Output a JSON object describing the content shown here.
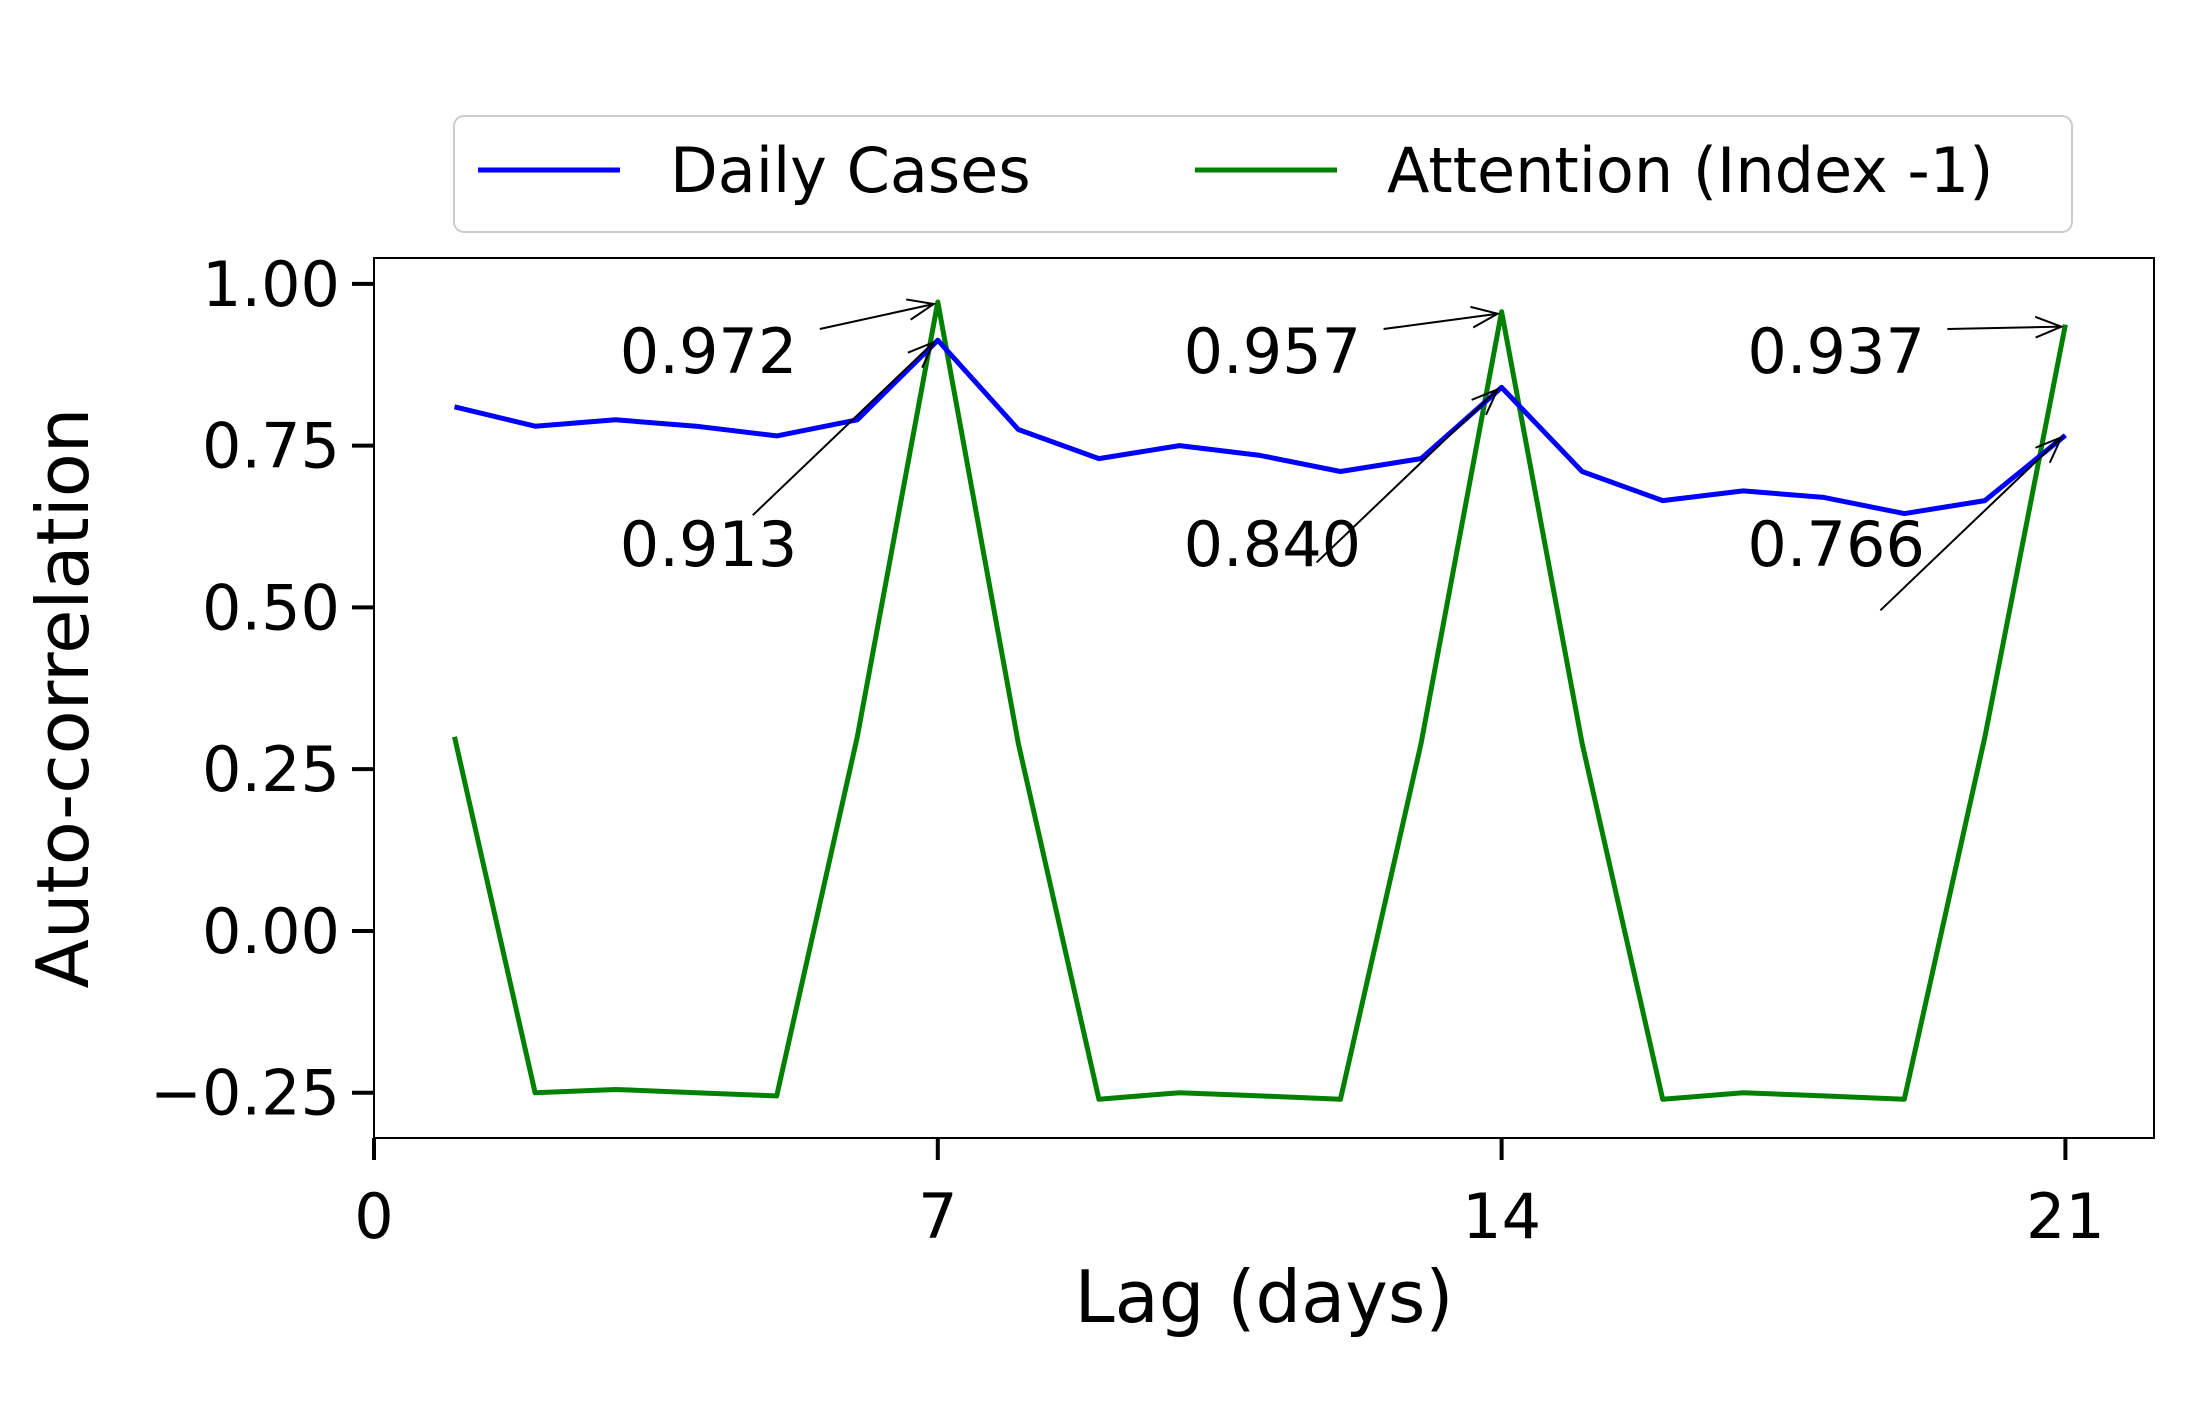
{
  "chart_data": {
    "type": "line",
    "xlabel": "Lag (days)",
    "ylabel": "Auto-correlation",
    "xlim": [
      0,
      22.1
    ],
    "ylim": [
      -0.32,
      1.04
    ],
    "xticks": [
      0,
      7,
      14,
      21
    ],
    "yticks": [
      -0.25,
      0.0,
      0.25,
      0.5,
      0.75,
      1.0
    ],
    "ytick_labels": [
      "−0.25",
      "0.00",
      "0.25",
      "0.50",
      "0.75",
      "1.00"
    ],
    "xtick_labels": [
      "0",
      "7",
      "14",
      "21"
    ],
    "grid": false,
    "legend_position": "top (outside)",
    "x": [
      1,
      2,
      3,
      4,
      5,
      6,
      7,
      8,
      9,
      10,
      11,
      12,
      13,
      14,
      15,
      16,
      17,
      18,
      19,
      20,
      21
    ],
    "series": [
      {
        "name": "Daily Cases",
        "color": "#0000ff",
        "values": [
          0.81,
          0.78,
          0.79,
          0.78,
          0.765,
          0.79,
          0.913,
          0.775,
          0.73,
          0.75,
          0.735,
          0.71,
          0.73,
          0.84,
          0.71,
          0.665,
          0.68,
          0.67,
          0.645,
          0.665,
          0.766
        ]
      },
      {
        "name": "Attention (Index -1)",
        "color": "#008000",
        "values": [
          0.3,
          -0.25,
          -0.245,
          -0.25,
          -0.255,
          0.3,
          0.972,
          0.29,
          -0.26,
          -0.25,
          -0.255,
          -0.26,
          0.29,
          0.957,
          0.29,
          -0.26,
          -0.25,
          -0.255,
          -0.26,
          0.3,
          0.937
        ]
      }
    ],
    "annotations": [
      {
        "text": "0.972",
        "x": 7,
        "y": 0.972,
        "series": "Attention (Index -1)"
      },
      {
        "text": "0.957",
        "x": 14,
        "y": 0.957,
        "series": "Attention (Index -1)"
      },
      {
        "text": "0.937",
        "x": 21,
        "y": 0.937,
        "series": "Attention (Index -1)"
      },
      {
        "text": "0.913",
        "x": 7,
        "y": 0.913,
        "series": "Daily Cases"
      },
      {
        "text": "0.840",
        "x": 14,
        "y": 0.84,
        "series": "Daily Cases"
      },
      {
        "text": "0.766",
        "x": 21,
        "y": 0.766,
        "series": "Daily Cases"
      }
    ]
  }
}
